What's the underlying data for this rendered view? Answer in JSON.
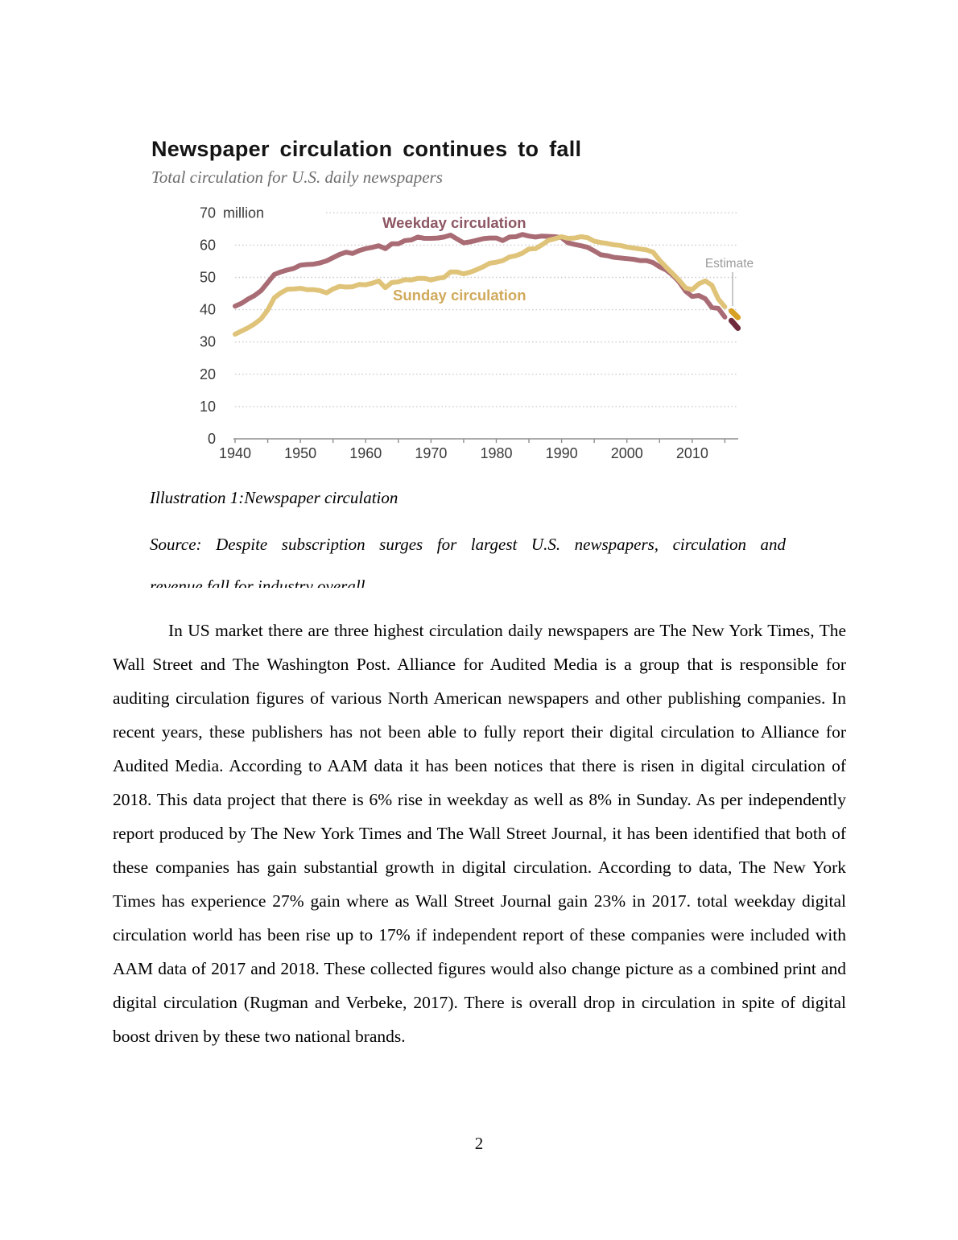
{
  "figure": {
    "title": "Newspaper circulation continues to fall",
    "subtitle": "Total circulation for U.S. daily newspapers",
    "caption": "Illustration 1:Newspaper circulation",
    "source_line1": "Source: Despite subscription surges for largest U.S. newspapers, circulation and",
    "source_line2": "revenue fall for industry overall"
  },
  "chart_data": {
    "type": "line",
    "title": "Newspaper circulation continues to fall",
    "subtitle": "Total circulation for U.S. daily newspapers",
    "xlabel": "",
    "ylabel": "million",
    "unit_label_value": "70",
    "unit_label_suffix": "million",
    "xlim": [
      1940,
      2017
    ],
    "ylim": [
      0,
      70
    ],
    "y_ticks": [
      0,
      10,
      20,
      30,
      40,
      50,
      60,
      70
    ],
    "x_major_ticks": [
      1940,
      1950,
      1960,
      1970,
      1980,
      1990,
      2000,
      2010
    ],
    "x_minor_ticks": [
      1945,
      1955,
      1965,
      1975,
      1985,
      1995,
      2005,
      2015
    ],
    "grid": "dotted-horizontal",
    "legend_position": "inline-labels",
    "annotations": {
      "estimate_label": "Estimate"
    },
    "colors": {
      "gridline": "#cccccc",
      "axis": "#8f8f8f",
      "tick_text": "#3a3a3a",
      "estimate_text": "#9b9b9b",
      "estimate_line": "#b5b5b5",
      "weekday_line": "#a96c75",
      "weekday_label": "#8d5663",
      "weekday_estimate": "#6d2b3d",
      "sunday_line": "#dfc379",
      "sunday_label": "#d0a95a",
      "sunday_estimate": "#d6a125"
    },
    "series": [
      {
        "name": "Weekday circulation",
        "color": "#a96c75",
        "label_color": "#8d5663",
        "estimate_color": "#6d2b3d",
        "points": [
          [
            1940,
            41.1
          ],
          [
            1941,
            42.0
          ],
          [
            1942,
            43.3
          ],
          [
            1943,
            44.4
          ],
          [
            1944,
            45.9
          ],
          [
            1945,
            48.4
          ],
          [
            1946,
            50.9
          ],
          [
            1947,
            51.7
          ],
          [
            1948,
            52.3
          ],
          [
            1949,
            52.8
          ],
          [
            1950,
            53.8
          ],
          [
            1951,
            54.0
          ],
          [
            1952,
            54.1
          ],
          [
            1953,
            54.5
          ],
          [
            1954,
            55.1
          ],
          [
            1955,
            56.1
          ],
          [
            1956,
            57.1
          ],
          [
            1957,
            57.8
          ],
          [
            1958,
            57.4
          ],
          [
            1959,
            58.3
          ],
          [
            1960,
            58.9
          ],
          [
            1961,
            59.3
          ],
          [
            1962,
            59.8
          ],
          [
            1963,
            58.9
          ],
          [
            1964,
            60.4
          ],
          [
            1965,
            60.4
          ],
          [
            1966,
            61.4
          ],
          [
            1967,
            61.6
          ],
          [
            1968,
            62.5
          ],
          [
            1969,
            62.1
          ],
          [
            1970,
            62.1
          ],
          [
            1971,
            62.2
          ],
          [
            1972,
            62.5
          ],
          [
            1973,
            63.1
          ],
          [
            1974,
            61.9
          ],
          [
            1975,
            60.7
          ],
          [
            1976,
            61.0
          ],
          [
            1977,
            61.5
          ],
          [
            1978,
            62.0
          ],
          [
            1979,
            62.2
          ],
          [
            1980,
            62.2
          ],
          [
            1981,
            61.4
          ],
          [
            1982,
            62.5
          ],
          [
            1983,
            62.6
          ],
          [
            1984,
            63.3
          ],
          [
            1985,
            62.8
          ],
          [
            1986,
            62.5
          ],
          [
            1987,
            62.8
          ],
          [
            1988,
            62.7
          ],
          [
            1989,
            62.6
          ],
          [
            1990,
            62.3
          ],
          [
            1991,
            60.7
          ],
          [
            1992,
            60.2
          ],
          [
            1993,
            59.8
          ],
          [
            1994,
            59.3
          ],
          [
            1995,
            58.2
          ],
          [
            1996,
            57.0
          ],
          [
            1997,
            56.7
          ],
          [
            1998,
            56.2
          ],
          [
            1999,
            56.0
          ],
          [
            2000,
            55.8
          ],
          [
            2001,
            55.6
          ],
          [
            2002,
            55.2
          ],
          [
            2003,
            55.2
          ],
          [
            2004,
            54.6
          ],
          [
            2005,
            53.3
          ],
          [
            2006,
            52.3
          ],
          [
            2007,
            50.7
          ],
          [
            2008,
            48.6
          ],
          [
            2009,
            45.7
          ],
          [
            2010,
            44.1
          ],
          [
            2011,
            44.4
          ],
          [
            2012,
            43.4
          ],
          [
            2013,
            40.7
          ],
          [
            2014,
            40.4
          ],
          [
            2015,
            37.7
          ]
        ],
        "estimate_points": [
          [
            2016,
            36.6
          ],
          [
            2017,
            34.3
          ]
        ]
      },
      {
        "name": "Sunday circulation",
        "color": "#dfc379",
        "label_color": "#d0a95a",
        "estimate_color": "#d6a125",
        "points": [
          [
            1940,
            32.4
          ],
          [
            1941,
            33.4
          ],
          [
            1942,
            34.4
          ],
          [
            1943,
            35.6
          ],
          [
            1944,
            37.2
          ],
          [
            1945,
            39.9
          ],
          [
            1946,
            43.7
          ],
          [
            1947,
            45.2
          ],
          [
            1948,
            46.3
          ],
          [
            1949,
            46.4
          ],
          [
            1950,
            46.6
          ],
          [
            1951,
            46.2
          ],
          [
            1952,
            46.2
          ],
          [
            1953,
            45.9
          ],
          [
            1954,
            45.2
          ],
          [
            1955,
            46.4
          ],
          [
            1956,
            47.2
          ],
          [
            1957,
            47.0
          ],
          [
            1958,
            47.1
          ],
          [
            1959,
            47.8
          ],
          [
            1960,
            47.7
          ],
          [
            1961,
            48.2
          ],
          [
            1962,
            48.9
          ],
          [
            1963,
            46.8
          ],
          [
            1964,
            48.4
          ],
          [
            1965,
            48.6
          ],
          [
            1966,
            49.3
          ],
          [
            1967,
            49.2
          ],
          [
            1968,
            49.7
          ],
          [
            1969,
            49.7
          ],
          [
            1970,
            49.2
          ],
          [
            1971,
            49.7
          ],
          [
            1972,
            50.0
          ],
          [
            1973,
            51.7
          ],
          [
            1974,
            51.7
          ],
          [
            1975,
            51.1
          ],
          [
            1976,
            51.6
          ],
          [
            1977,
            52.4
          ],
          [
            1978,
            53.3
          ],
          [
            1979,
            54.4
          ],
          [
            1980,
            54.7
          ],
          [
            1981,
            55.2
          ],
          [
            1982,
            56.3
          ],
          [
            1983,
            56.7
          ],
          [
            1984,
            57.5
          ],
          [
            1985,
            58.8
          ],
          [
            1986,
            58.9
          ],
          [
            1987,
            60.1
          ],
          [
            1988,
            61.5
          ],
          [
            1989,
            62.0
          ],
          [
            1990,
            62.6
          ],
          [
            1991,
            62.1
          ],
          [
            1992,
            62.2
          ],
          [
            1993,
            62.6
          ],
          [
            1994,
            62.3
          ],
          [
            1995,
            61.2
          ],
          [
            1996,
            60.8
          ],
          [
            1997,
            60.5
          ],
          [
            1998,
            60.1
          ],
          [
            1999,
            59.9
          ],
          [
            2000,
            59.4
          ],
          [
            2001,
            59.1
          ],
          [
            2002,
            58.8
          ],
          [
            2003,
            58.5
          ],
          [
            2004,
            57.8
          ],
          [
            2005,
            55.3
          ],
          [
            2006,
            53.2
          ],
          [
            2007,
            51.2
          ],
          [
            2008,
            49.1
          ],
          [
            2009,
            46.7
          ],
          [
            2010,
            46.2
          ],
          [
            2011,
            48.0
          ],
          [
            2012,
            48.9
          ],
          [
            2013,
            47.6
          ],
          [
            2014,
            43.3
          ],
          [
            2015,
            40.9
          ]
        ],
        "estimate_points": [
          [
            2016,
            39.6
          ],
          [
            2017,
            37.6
          ]
        ]
      }
    ]
  },
  "body": {
    "paragraph": "In US market there are three highest circulation daily newspapers are The New York Times, The Wall Street and The Washington Post. Alliance for Audited Media is a group that is responsible for auditing circulation figures of various North American newspapers and other publishing companies. In recent years, these publishers has not been able to fully report their digital circulation to Alliance for Audited Media. According to AAM data it has been notices that there is risen in digital circulation of 2018. This data project that there is 6% rise in weekday as well as 8% in Sunday. As per independently report produced by The New York Times and The Wall Street Journal, it has been identified that both of these companies has gain substantial growth in digital circulation. According to data, The New York Times has experience 27% gain where as Wall Street Journal gain  23% in 2017. total weekday digital circulation world has been rise up to 17% if independent report of these companies were included with AAM data of 2017 and 2018.  These collected figures would also change picture as a combined print and digital circulation (Rugman and Verbeke, 2017). There is overall drop in circulation in spite of digital boost driven by these two national brands."
  },
  "page": {
    "number": "2"
  }
}
